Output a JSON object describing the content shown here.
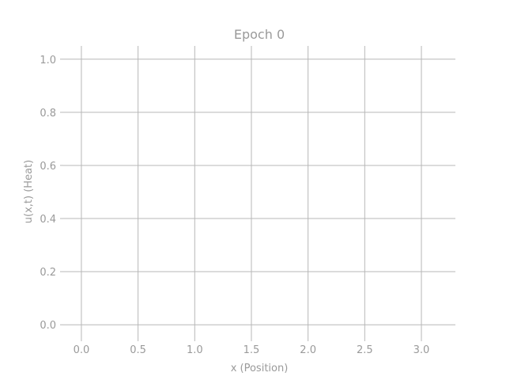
{
  "chart_data": {
    "type": "line",
    "title": "Epoch 0",
    "xlabel": "x (Position)",
    "ylabel": "u(x,t) (Heat)",
    "x_ticks": [
      "0.0",
      "0.5",
      "1.0",
      "1.5",
      "2.0",
      "2.5",
      "3.0"
    ],
    "y_ticks": [
      "0.0",
      "0.2",
      "0.4",
      "0.6",
      "0.8",
      "1.0"
    ],
    "x_tick_values": [
      0.0,
      0.5,
      1.0,
      1.5,
      2.0,
      2.5,
      3.0
    ],
    "y_tick_values": [
      0.0,
      0.2,
      0.4,
      0.6,
      0.8,
      1.0
    ],
    "xlim": [
      -0.16,
      3.3
    ],
    "ylim": [
      -0.05,
      1.05
    ],
    "grid": true,
    "series": []
  }
}
